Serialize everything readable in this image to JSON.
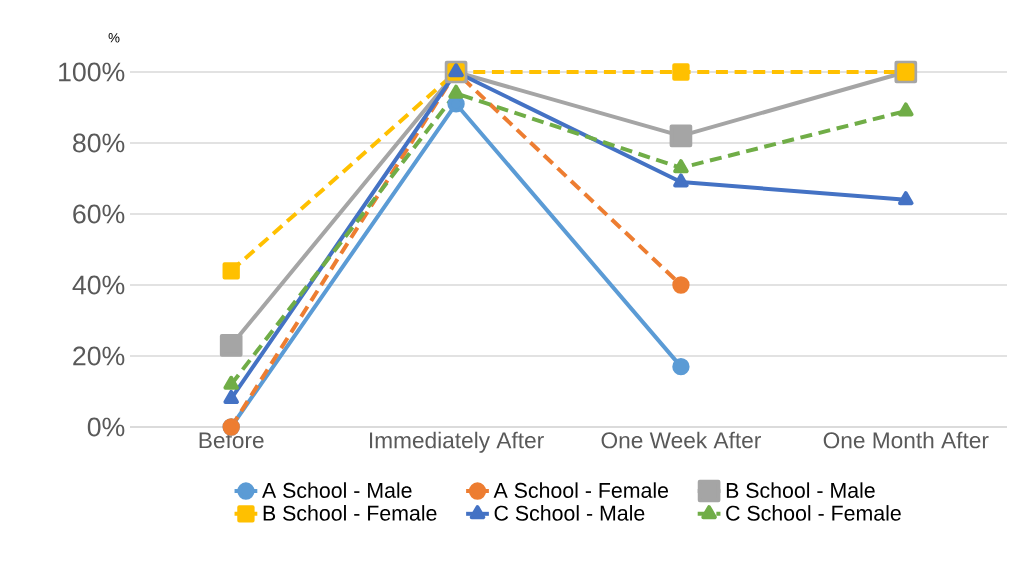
{
  "chart_data": {
    "type": "line",
    "ylabel": "%",
    "categories": [
      "Before",
      "Immediately After",
      "One Week After",
      "One Month After"
    ],
    "series": [
      {
        "name": "A School - Male",
        "color": "#5b9bd5",
        "marker": "circle",
        "line_style": "solid",
        "values": [
          0,
          91,
          17,
          null
        ]
      },
      {
        "name": "A School - Female",
        "color": "#ed7d31",
        "marker": "circle",
        "line_style": "dashed",
        "values": [
          0,
          100,
          40,
          null
        ]
      },
      {
        "name": "B School - Male",
        "color": "#a5a5a5",
        "marker": "square",
        "line_style": "solid",
        "values": [
          23,
          100,
          82,
          100
        ]
      },
      {
        "name": "B School - Female",
        "color": "#ffc000",
        "marker": "square",
        "line_style": "dashed",
        "values": [
          44,
          100,
          100,
          100
        ]
      },
      {
        "name": "C School - Male",
        "color": "#4472c4",
        "marker": "triangle",
        "line_style": "solid",
        "values": [
          8,
          100,
          69,
          64
        ]
      },
      {
        "name": "C School - Female",
        "color": "#70ad47",
        "marker": "triangle",
        "line_style": "dashed",
        "values": [
          12,
          94,
          73,
          89
        ]
      }
    ],
    "ylim": [
      0,
      100
    ],
    "yticks": [
      {
        "value": 0,
        "label": "0%"
      },
      {
        "value": 20,
        "label": "20%"
      },
      {
        "value": 40,
        "label": "40%"
      },
      {
        "value": 60,
        "label": "60%"
      },
      {
        "value": 80,
        "label": "80%"
      },
      {
        "value": 100,
        "label": "100%"
      }
    ],
    "grid": "y",
    "legend": "bottom"
  }
}
